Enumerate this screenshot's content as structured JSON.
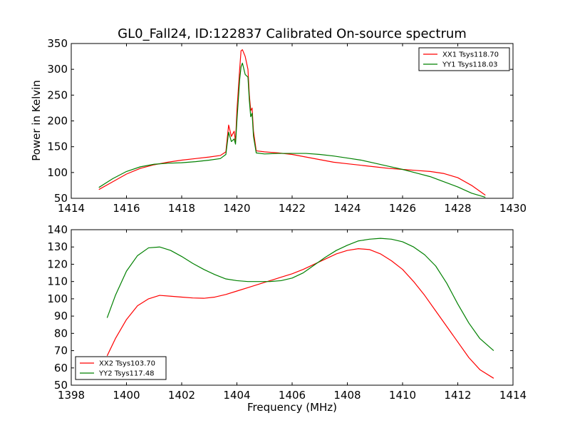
{
  "chart_data": [
    {
      "type": "line",
      "title": "GL0_Fall24, ID:122837 Calibrated On-source spectrum",
      "xlabel": "",
      "ylabel": "Power in Kelvin",
      "xlim": [
        1414,
        1430
      ],
      "ylim": [
        50,
        350
      ],
      "xticks": [
        "1414",
        "1416",
        "1418",
        "1420",
        "1422",
        "1424",
        "1426",
        "1428",
        "1430"
      ],
      "yticks": [
        "50",
        "100",
        "150",
        "200",
        "250",
        "300",
        "350"
      ],
      "legend_position": "top-right",
      "series": [
        {
          "name": "XX1 Tsys118.70",
          "color": "#ff0000",
          "x": [
            1415.0,
            1415.5,
            1416.0,
            1416.5,
            1417.0,
            1417.5,
            1418.0,
            1418.5,
            1419.0,
            1419.4,
            1419.6,
            1419.7,
            1419.8,
            1419.9,
            1419.95,
            1420.0,
            1420.1,
            1420.15,
            1420.2,
            1420.3,
            1420.4,
            1420.45,
            1420.5,
            1420.55,
            1420.6,
            1420.7,
            1421.0,
            1421.5,
            1422.0,
            1422.5,
            1423.0,
            1423.5,
            1424.0,
            1424.5,
            1425.0,
            1425.5,
            1426.0,
            1426.5,
            1427.0,
            1427.5,
            1428.0,
            1428.5,
            1429.0
          ],
          "values": [
            67,
            82,
            97,
            108,
            115,
            120,
            124,
            127,
            130,
            133,
            140,
            192,
            170,
            180,
            160,
            220,
            300,
            336,
            338,
            325,
            300,
            250,
            220,
            225,
            180,
            142,
            140,
            138,
            135,
            130,
            125,
            120,
            117,
            114,
            111,
            108,
            106,
            104,
            102,
            98,
            90,
            75,
            56
          ]
        },
        {
          "name": "YY1 Tsys118.03",
          "color": "#008000",
          "x": [
            1415.0,
            1415.5,
            1416.0,
            1416.5,
            1417.0,
            1417.5,
            1418.0,
            1418.5,
            1419.0,
            1419.4,
            1419.6,
            1419.7,
            1419.8,
            1419.9,
            1419.95,
            1420.0,
            1420.1,
            1420.15,
            1420.2,
            1420.3,
            1420.4,
            1420.45,
            1420.5,
            1420.55,
            1420.6,
            1420.7,
            1421.0,
            1421.5,
            1422.0,
            1422.5,
            1423.0,
            1423.5,
            1424.0,
            1424.5,
            1425.0,
            1425.5,
            1426.0,
            1426.5,
            1427.0,
            1427.5,
            1428.0,
            1428.5,
            1429.0
          ],
          "values": [
            71,
            88,
            102,
            111,
            116,
            118,
            119,
            121,
            124,
            127,
            135,
            178,
            160,
            165,
            155,
            200,
            280,
            305,
            312,
            290,
            285,
            240,
            208,
            215,
            170,
            138,
            136,
            137,
            137,
            137,
            135,
            132,
            128,
            124,
            118,
            112,
            106,
            99,
            92,
            82,
            72,
            60,
            52
          ]
        }
      ]
    },
    {
      "type": "line",
      "title": "",
      "xlabel": "Frequency (MHz)",
      "ylabel": "",
      "xlim": [
        1398,
        1414
      ],
      "ylim": [
        50,
        140
      ],
      "xticks": [
        "1398",
        "1400",
        "1402",
        "1404",
        "1406",
        "1408",
        "1410",
        "1412",
        "1414"
      ],
      "yticks": [
        "50",
        "60",
        "70",
        "80",
        "90",
        "100",
        "110",
        "120",
        "130",
        "140"
      ],
      "legend_position": "bottom-left",
      "series": [
        {
          "name": "XX2 Tsys103.70",
          "color": "#ff0000",
          "x": [
            1399.3,
            1399.6,
            1400.0,
            1400.4,
            1400.8,
            1401.2,
            1401.6,
            1402.0,
            1402.4,
            1402.8,
            1403.2,
            1403.6,
            1404.0,
            1404.4,
            1404.8,
            1405.2,
            1405.6,
            1406.0,
            1406.4,
            1406.8,
            1407.2,
            1407.6,
            1408.0,
            1408.4,
            1408.8,
            1409.2,
            1409.6,
            1410.0,
            1410.4,
            1410.8,
            1411.2,
            1411.6,
            1412.0,
            1412.4,
            1412.8,
            1413.3
          ],
          "values": [
            67,
            77,
            88,
            96,
            100,
            102,
            101.5,
            101,
            100.5,
            100.3,
            101,
            102.5,
            104.5,
            106.5,
            108.5,
            110.5,
            112.5,
            114.5,
            117,
            120,
            123,
            126,
            128,
            129,
            128.5,
            126,
            122,
            117,
            110,
            102,
            93,
            84,
            75,
            66,
            59,
            54
          ]
        },
        {
          "name": "YY2 Tsys117.48",
          "color": "#008000",
          "x": [
            1399.3,
            1399.6,
            1400.0,
            1400.4,
            1400.8,
            1401.2,
            1401.6,
            1402.0,
            1402.4,
            1402.8,
            1403.2,
            1403.6,
            1404.0,
            1404.4,
            1404.8,
            1405.2,
            1405.6,
            1406.0,
            1406.4,
            1406.8,
            1407.2,
            1407.6,
            1408.0,
            1408.4,
            1408.8,
            1409.2,
            1409.6,
            1410.0,
            1410.4,
            1410.8,
            1411.2,
            1411.6,
            1412.0,
            1412.4,
            1412.8,
            1413.3
          ],
          "values": [
            89,
            102,
            116,
            125,
            129.5,
            130,
            128,
            124.5,
            120.5,
            117,
            114,
            111.5,
            110.5,
            110,
            110,
            110,
            110.5,
            112,
            115,
            119.5,
            124,
            128,
            131,
            133.5,
            134.5,
            135,
            134.5,
            133,
            130,
            125.5,
            119,
            109,
            97,
            86,
            77,
            70
          ]
        }
      ]
    }
  ]
}
